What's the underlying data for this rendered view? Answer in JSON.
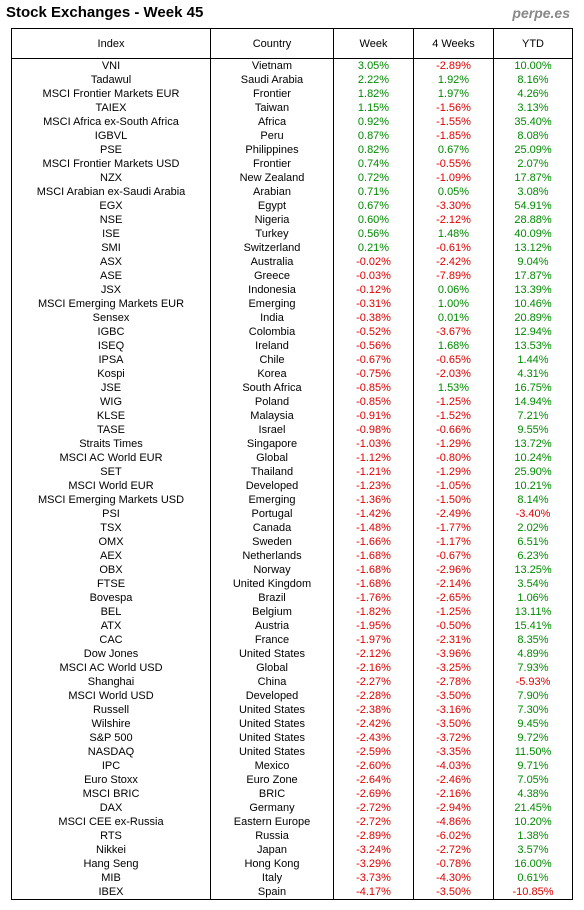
{
  "header": {
    "title": "Stock Exchanges - Week 45",
    "site": "perpe.es"
  },
  "table": {
    "columns": [
      "Index",
      "Country",
      "Week",
      "4 Weeks",
      "YTD"
    ],
    "rows": [
      [
        "VNI",
        "Vietnam",
        "3.05%",
        "-2.89%",
        "10.00%"
      ],
      [
        "Tadawul",
        "Saudi Arabia",
        "2.22%",
        "1.92%",
        "8.16%"
      ],
      [
        "MSCI Frontier Markets EUR",
        "Frontier",
        "1.82%",
        "1.97%",
        "4.26%"
      ],
      [
        "TAIEX",
        "Taiwan",
        "1.15%",
        "-1.56%",
        "3.13%"
      ],
      [
        "MSCI Africa ex-South Africa",
        "Africa",
        "0.92%",
        "-1.55%",
        "35.40%"
      ],
      [
        "IGBVL",
        "Peru",
        "0.87%",
        "-1.85%",
        "8.08%"
      ],
      [
        "PSE",
        "Philippines",
        "0.82%",
        "0.67%",
        "25.09%"
      ],
      [
        "MSCI Frontier Markets USD",
        "Frontier",
        "0.74%",
        "-0.55%",
        "2.07%"
      ],
      [
        "NZX",
        "New Zealand",
        "0.72%",
        "-1.09%",
        "17.87%"
      ],
      [
        "MSCI Arabian ex-Saudi Arabia",
        "Arabian",
        "0.71%",
        "0.05%",
        "3.08%"
      ],
      [
        "EGX",
        "Egypt",
        "0.67%",
        "-3.30%",
        "54.91%"
      ],
      [
        "NSE",
        "Nigeria",
        "0.60%",
        "-2.12%",
        "28.88%"
      ],
      [
        "ISE",
        "Turkey",
        "0.56%",
        "1.48%",
        "40.09%"
      ],
      [
        "SMI",
        "Switzerland",
        "0.21%",
        "-0.61%",
        "13.12%"
      ],
      [
        "ASX",
        "Australia",
        "-0.02%",
        "-2.42%",
        "9.04%"
      ],
      [
        "ASE",
        "Greece",
        "-0.03%",
        "-7.89%",
        "17.87%"
      ],
      [
        "JSX",
        "Indonesia",
        "-0.12%",
        "0.06%",
        "13.39%"
      ],
      [
        "MSCI Emerging Markets EUR",
        "Emerging",
        "-0.31%",
        "1.00%",
        "10.46%"
      ],
      [
        "Sensex",
        "India",
        "-0.38%",
        "0.01%",
        "20.89%"
      ],
      [
        "IGBC",
        "Colombia",
        "-0.52%",
        "-3.67%",
        "12.94%"
      ],
      [
        "ISEQ",
        "Ireland",
        "-0.56%",
        "1.68%",
        "13.53%"
      ],
      [
        "IPSA",
        "Chile",
        "-0.67%",
        "-0.65%",
        "1.44%"
      ],
      [
        "Kospi",
        "Korea",
        "-0.75%",
        "-2.03%",
        "4.31%"
      ],
      [
        "JSE",
        "South Africa",
        "-0.85%",
        "1.53%",
        "16.75%"
      ],
      [
        "WIG",
        "Poland",
        "-0.85%",
        "-1.25%",
        "14.94%"
      ],
      [
        "KLSE",
        "Malaysia",
        "-0.91%",
        "-1.52%",
        "7.21%"
      ],
      [
        "TASE",
        "Israel",
        "-0.98%",
        "-0.66%",
        "9.55%"
      ],
      [
        "Straits Times",
        "Singapore",
        "-1.03%",
        "-1.29%",
        "13.72%"
      ],
      [
        "MSCI AC World EUR",
        "Global",
        "-1.12%",
        "-0.80%",
        "10.24%"
      ],
      [
        "SET",
        "Thailand",
        "-1.21%",
        "-1.29%",
        "25.90%"
      ],
      [
        "MSCI World EUR",
        "Developed",
        "-1.23%",
        "-1.05%",
        "10.21%"
      ],
      [
        "MSCI Emerging Markets USD",
        "Emerging",
        "-1.36%",
        "-1.50%",
        "8.14%"
      ],
      [
        "PSI",
        "Portugal",
        "-1.42%",
        "-2.49%",
        "-3.40%"
      ],
      [
        "TSX",
        "Canada",
        "-1.48%",
        "-1.77%",
        "2.02%"
      ],
      [
        "OMX",
        "Sweden",
        "-1.66%",
        "-1.17%",
        "6.51%"
      ],
      [
        "AEX",
        "Netherlands",
        "-1.68%",
        "-0.67%",
        "6.23%"
      ],
      [
        "OBX",
        "Norway",
        "-1.68%",
        "-2.96%",
        "13.25%"
      ],
      [
        "FTSE",
        "United Kingdom",
        "-1.68%",
        "-2.14%",
        "3.54%"
      ],
      [
        "Bovespa",
        "Brazil",
        "-1.76%",
        "-2.65%",
        "1.06%"
      ],
      [
        "BEL",
        "Belgium",
        "-1.82%",
        "-1.25%",
        "13.11%"
      ],
      [
        "ATX",
        "Austria",
        "-1.95%",
        "-0.50%",
        "15.41%"
      ],
      [
        "CAC",
        "France",
        "-1.97%",
        "-2.31%",
        "8.35%"
      ],
      [
        "Dow Jones",
        "United States",
        "-2.12%",
        "-3.96%",
        "4.89%"
      ],
      [
        "MSCI AC World USD",
        "Global",
        "-2.16%",
        "-3.25%",
        "7.93%"
      ],
      [
        "Shanghai",
        "China",
        "-2.27%",
        "-2.78%",
        "-5.93%"
      ],
      [
        "MSCI World USD",
        "Developed",
        "-2.28%",
        "-3.50%",
        "7.90%"
      ],
      [
        "Russell",
        "United States",
        "-2.38%",
        "-3.16%",
        "7.30%"
      ],
      [
        "Wilshire",
        "United States",
        "-2.42%",
        "-3.50%",
        "9.45%"
      ],
      [
        "S&P 500",
        "United States",
        "-2.43%",
        "-3.72%",
        "9.72%"
      ],
      [
        "NASDAQ",
        "United States",
        "-2.59%",
        "-3.35%",
        "11.50%"
      ],
      [
        "IPC",
        "Mexico",
        "-2.60%",
        "-4.03%",
        "9.71%"
      ],
      [
        "Euro Stoxx",
        "Euro Zone",
        "-2.64%",
        "-2.46%",
        "7.05%"
      ],
      [
        "MSCI BRIC",
        "BRIC",
        "-2.69%",
        "-2.16%",
        "4.38%"
      ],
      [
        "DAX",
        "Germany",
        "-2.72%",
        "-2.94%",
        "21.45%"
      ],
      [
        "MSCI CEE ex-Russia",
        "Eastern Europe",
        "-2.72%",
        "-4.86%",
        "10.20%"
      ],
      [
        "RTS",
        "Russia",
        "-2.89%",
        "-6.02%",
        "1.38%"
      ],
      [
        "Nikkei",
        "Japan",
        "-3.24%",
        "-2.72%",
        "3.57%"
      ],
      [
        "Hang Seng",
        "Hong Kong",
        "-3.29%",
        "-0.78%",
        "16.00%"
      ],
      [
        "MIB",
        "Italy",
        "-3.73%",
        "-4.30%",
        "0.61%"
      ],
      [
        "IBEX",
        "Spain",
        "-4.17%",
        "-3.50%",
        "-10.85%"
      ]
    ]
  }
}
